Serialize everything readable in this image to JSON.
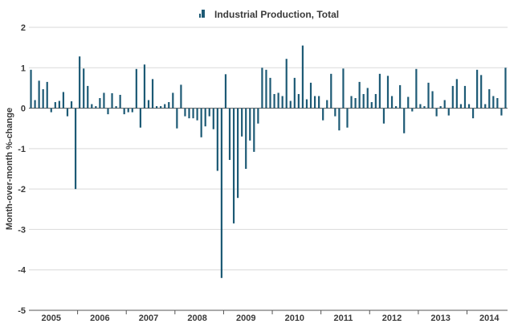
{
  "chart_data": {
    "type": "bar",
    "title": "",
    "xlabel": "",
    "ylabel": "Month-over-month %-change",
    "ylim": [
      -5,
      2
    ],
    "yticks": [
      "-5",
      "-4",
      "-3",
      "-2",
      "-1",
      "0",
      "1",
      "2"
    ],
    "grid": "horizontal",
    "legend_position": "top-center",
    "bar_color": "#1d5a75",
    "x_start": "2005-01",
    "x_end": "2014-10",
    "year_labels": [
      "2005",
      "2006",
      "2007",
      "2008",
      "2009",
      "2010",
      "2011",
      "2012",
      "2013",
      "2014"
    ],
    "series": [
      {
        "name": "Industrial Production, Total",
        "values": [
          0.95,
          0.2,
          0.68,
          0.47,
          0.65,
          -0.1,
          0.15,
          0.18,
          0.4,
          -0.2,
          0.17,
          -2.0,
          1.28,
          0.98,
          0.55,
          0.1,
          0.05,
          0.25,
          0.38,
          -0.15,
          0.37,
          0.05,
          0.33,
          -0.15,
          -0.1,
          -0.1,
          0.97,
          -0.48,
          1.08,
          0.2,
          0.72,
          0.05,
          0.05,
          0.1,
          0.15,
          0.38,
          -0.5,
          0.58,
          -0.2,
          -0.25,
          -0.25,
          -0.3,
          -0.72,
          -0.45,
          -0.2,
          -0.52,
          -1.55,
          -4.2,
          0.84,
          -1.28,
          -2.85,
          -2.22,
          -0.7,
          -1.5,
          -0.8,
          -1.08,
          -0.38,
          1.0,
          0.95,
          0.75,
          0.35,
          0.38,
          0.3,
          1.22,
          0.18,
          0.75,
          0.35,
          1.55,
          0.22,
          0.63,
          0.3,
          0.3,
          -0.3,
          0.2,
          0.85,
          -0.2,
          -0.55,
          0.98,
          -0.48,
          0.3,
          0.25,
          0.65,
          0.35,
          0.5,
          0.15,
          0.35,
          0.85,
          -0.38,
          0.8,
          0.3,
          0.05,
          0.57,
          -0.62,
          0.28,
          -0.08,
          0.97,
          0.1,
          0.05,
          0.63,
          0.42,
          -0.2,
          0.05,
          0.2,
          -0.18,
          0.55,
          0.72,
          0.1,
          0.55,
          0.1,
          -0.25,
          0.95,
          0.82,
          0.1,
          0.47,
          0.3,
          0.25,
          -0.18,
          1.0
        ]
      }
    ]
  }
}
